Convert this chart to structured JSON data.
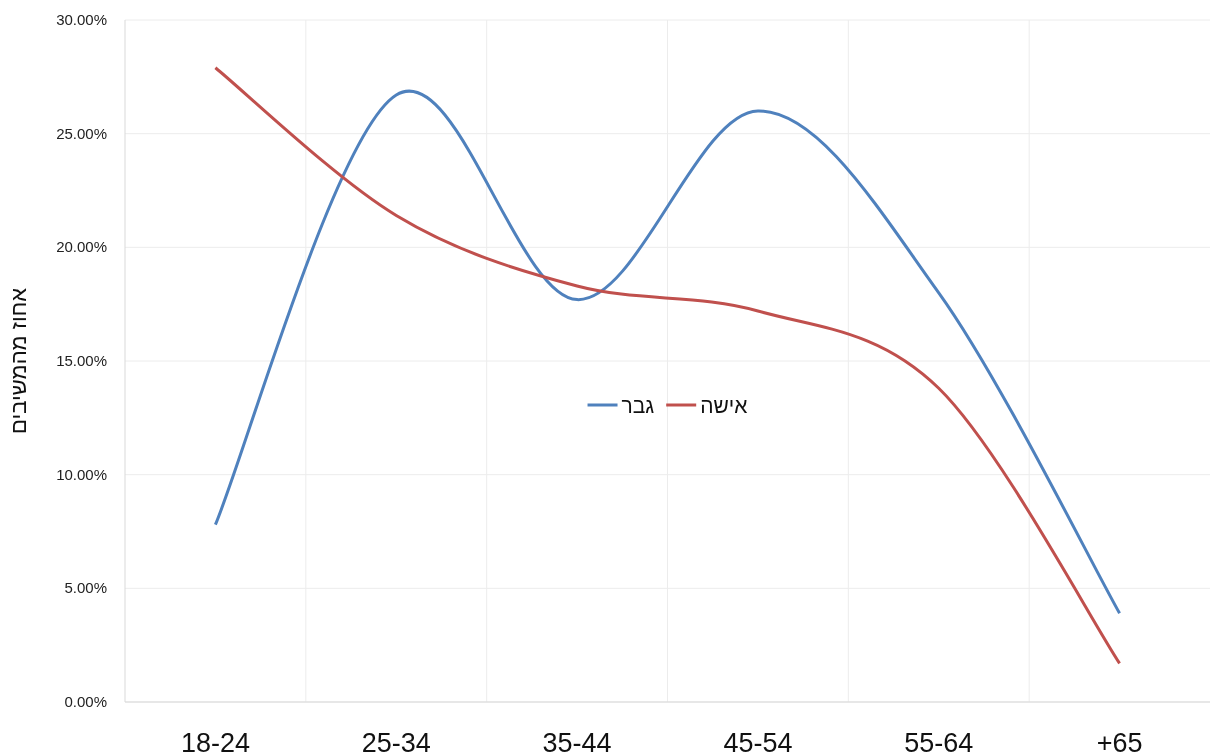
{
  "chart_data": {
    "type": "line",
    "ylabel": "אחוז מהמשיבים",
    "categories": [
      "18-24",
      "25-34",
      "35-44",
      "45-54",
      "55-64",
      "+65"
    ],
    "series": [
      {
        "name": "גבר",
        "color": "#4f81bd",
        "values": [
          7.8,
          26.7,
          17.7,
          26.0,
          18.0,
          3.9
        ]
      },
      {
        "name": "אישה",
        "color": "#c0504d",
        "values": [
          27.9,
          21.4,
          18.3,
          17.2,
          13.8,
          1.7
        ]
      }
    ],
    "ylim": [
      0,
      30
    ],
    "yticks": [
      {
        "value": 0,
        "label": "0.00%"
      },
      {
        "value": 5,
        "label": "5.00%"
      },
      {
        "value": 10,
        "label": "10.00%"
      },
      {
        "value": 15,
        "label": "15.00%"
      },
      {
        "value": 20,
        "label": "20.00%"
      },
      {
        "value": 25,
        "label": "25.00%"
      },
      {
        "value": 30,
        "label": "30.00%"
      }
    ],
    "grid": true,
    "legend": "center",
    "marker": "none",
    "line_style": "solid"
  }
}
